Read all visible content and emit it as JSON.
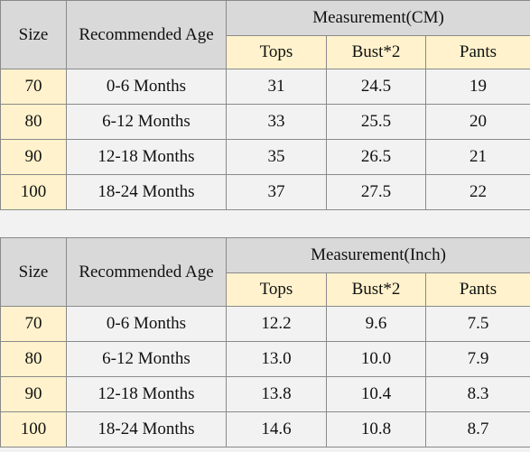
{
  "tables": [
    {
      "header": {
        "size": "Size",
        "age": "Recommended Age",
        "measurement": "Measurement(CM)",
        "columns": [
          "Tops",
          "Bust*2",
          "Pants"
        ]
      },
      "rows": [
        [
          "70",
          "0-6 Months",
          "31",
          "24.5",
          "19"
        ],
        [
          "80",
          "6-12 Months",
          "33",
          "25.5",
          "20"
        ],
        [
          "90",
          "12-18 Months",
          "35",
          "26.5",
          "21"
        ],
        [
          "100",
          "18-24 Months",
          "37",
          "27.5",
          "22"
        ]
      ]
    },
    {
      "header": {
        "size": "Size",
        "age": "Recommended Age",
        "measurement": "Measurement(Inch)",
        "columns": [
          "Tops",
          "Bust*2",
          "Pants"
        ]
      },
      "rows": [
        [
          "70",
          "0-6 Months",
          "12.2",
          "9.6",
          "7.5"
        ],
        [
          "80",
          "6-12 Months",
          "13.0",
          "10.0",
          "7.9"
        ],
        [
          "90",
          "12-18 Months",
          "13.8",
          "10.4",
          "8.3"
        ],
        [
          "100",
          "18-24 Months",
          "14.6",
          "10.8",
          "8.7"
        ]
      ]
    }
  ]
}
